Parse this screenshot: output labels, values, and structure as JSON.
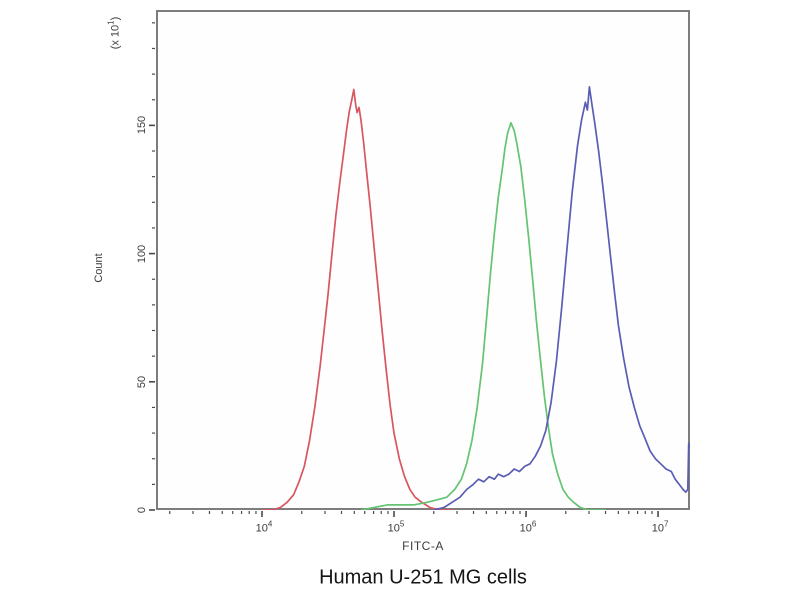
{
  "title": "Human U-251 MG cells",
  "frame": {
    "border_color": "#7d7d7d",
    "tick_color": "#4a4a4a",
    "text_color": "#3c3c3c"
  },
  "chart_data": {
    "type": "line",
    "chart_kind": "flow-cytometry-histogram-overlay",
    "title": "Human U-251 MG cells",
    "xlabel": "FITC-A",
    "ylabel": "Count",
    "y_unit_multiplier": {
      "prefix": "(x 10",
      "exponent": "1",
      "suffix": ")"
    },
    "x_scale": "log10",
    "x_range_log10": [
      3.197,
      7.242
    ],
    "x_tick_mantissa": "10",
    "x_major_tick_exponents": [
      4,
      5,
      6,
      7
    ],
    "x_minor_ticks": "log-decade-2-to-9",
    "ylim": [
      0,
      195
    ],
    "y_major_ticks": [
      0,
      50,
      100,
      150
    ],
    "y_minor_tick_step": 10,
    "grid": false,
    "legend": "none",
    "series": [
      {
        "name": "red-peak",
        "color": "#d95560",
        "peak_x_log10": 4.7,
        "peak_x_value": "5e4",
        "peak_count": 164,
        "points": [
          [
            4.0,
            0
          ],
          [
            4.08,
            0
          ],
          [
            4.14,
            1
          ],
          [
            4.19,
            3
          ],
          [
            4.24,
            6
          ],
          [
            4.28,
            11
          ],
          [
            4.32,
            17
          ],
          [
            4.36,
            27
          ],
          [
            4.4,
            40
          ],
          [
            4.44,
            56
          ],
          [
            4.47,
            70
          ],
          [
            4.5,
            84
          ],
          [
            4.53,
            100
          ],
          [
            4.56,
            115
          ],
          [
            4.59,
            128
          ],
          [
            4.62,
            140
          ],
          [
            4.64,
            148
          ],
          [
            4.66,
            155
          ],
          [
            4.68,
            160
          ],
          [
            4.695,
            164
          ],
          [
            4.71,
            158
          ],
          [
            4.72,
            155
          ],
          [
            4.735,
            157
          ],
          [
            4.75,
            152
          ],
          [
            4.77,
            143
          ],
          [
            4.79,
            133
          ],
          [
            4.82,
            118
          ],
          [
            4.85,
            102
          ],
          [
            4.88,
            86
          ],
          [
            4.91,
            70
          ],
          [
            4.94,
            55
          ],
          [
            4.97,
            41
          ],
          [
            5.0,
            30
          ],
          [
            5.04,
            20
          ],
          [
            5.08,
            13
          ],
          [
            5.12,
            8
          ],
          [
            5.16,
            5
          ],
          [
            5.21,
            3
          ],
          [
            5.27,
            1
          ],
          [
            5.34,
            0
          ],
          [
            5.45,
            0
          ]
        ]
      },
      {
        "name": "green-peak",
        "color": "#63c472",
        "peak_x_log10": 5.89,
        "peak_x_value": "8e5",
        "peak_count": 151,
        "points": [
          [
            4.75,
            0
          ],
          [
            4.85,
            1
          ],
          [
            4.95,
            2
          ],
          [
            5.05,
            2
          ],
          [
            5.15,
            2
          ],
          [
            5.25,
            3
          ],
          [
            5.33,
            4
          ],
          [
            5.4,
            5
          ],
          [
            5.46,
            8
          ],
          [
            5.51,
            12
          ],
          [
            5.55,
            18
          ],
          [
            5.59,
            27
          ],
          [
            5.63,
            40
          ],
          [
            5.67,
            57
          ],
          [
            5.7,
            74
          ],
          [
            5.73,
            92
          ],
          [
            5.76,
            108
          ],
          [
            5.79,
            122
          ],
          [
            5.82,
            133
          ],
          [
            5.84,
            141
          ],
          [
            5.86,
            147
          ],
          [
            5.885,
            151
          ],
          [
            5.91,
            148
          ],
          [
            5.93,
            143
          ],
          [
            5.96,
            134
          ],
          [
            5.99,
            121
          ],
          [
            6.02,
            106
          ],
          [
            6.05,
            90
          ],
          [
            6.08,
            73
          ],
          [
            6.11,
            58
          ],
          [
            6.14,
            44
          ],
          [
            6.17,
            32
          ],
          [
            6.2,
            22
          ],
          [
            6.24,
            14
          ],
          [
            6.28,
            8
          ],
          [
            6.32,
            5
          ],
          [
            6.36,
            3
          ],
          [
            6.41,
            1
          ],
          [
            6.47,
            0
          ],
          [
            6.6,
            0
          ]
        ]
      },
      {
        "name": "blue-peak",
        "color": "#5a5db4",
        "peak_x_log10": 6.48,
        "peak_x_value": "3e6",
        "peak_count": 165,
        "points": [
          [
            5.3,
            0
          ],
          [
            5.38,
            1
          ],
          [
            5.44,
            3
          ],
          [
            5.5,
            5
          ],
          [
            5.55,
            8
          ],
          [
            5.6,
            10
          ],
          [
            5.64,
            12
          ],
          [
            5.68,
            11
          ],
          [
            5.72,
            13
          ],
          [
            5.76,
            12
          ],
          [
            5.79,
            14
          ],
          [
            5.83,
            13
          ],
          [
            5.87,
            14
          ],
          [
            5.91,
            16
          ],
          [
            5.95,
            15
          ],
          [
            5.99,
            17
          ],
          [
            6.03,
            18
          ],
          [
            6.07,
            21
          ],
          [
            6.11,
            25
          ],
          [
            6.15,
            31
          ],
          [
            6.19,
            42
          ],
          [
            6.23,
            58
          ],
          [
            6.27,
            79
          ],
          [
            6.31,
            102
          ],
          [
            6.35,
            124
          ],
          [
            6.39,
            142
          ],
          [
            6.42,
            152
          ],
          [
            6.45,
            159
          ],
          [
            6.465,
            156
          ],
          [
            6.48,
            165
          ],
          [
            6.5,
            158
          ],
          [
            6.52,
            151
          ],
          [
            6.55,
            140
          ],
          [
            6.58,
            127
          ],
          [
            6.61,
            113
          ],
          [
            6.64,
            99
          ],
          [
            6.67,
            85
          ],
          [
            6.7,
            72
          ],
          [
            6.74,
            59
          ],
          [
            6.78,
            48
          ],
          [
            6.82,
            40
          ],
          [
            6.86,
            33
          ],
          [
            6.9,
            28
          ],
          [
            6.94,
            23
          ],
          [
            6.98,
            20
          ],
          [
            7.02,
            18
          ],
          [
            7.06,
            16
          ],
          [
            7.1,
            15
          ],
          [
            7.13,
            12
          ],
          [
            7.16,
            10
          ],
          [
            7.19,
            8
          ],
          [
            7.21,
            7
          ],
          [
            7.225,
            8
          ],
          [
            7.232,
            26
          ],
          [
            7.242,
            24
          ]
        ]
      }
    ]
  }
}
